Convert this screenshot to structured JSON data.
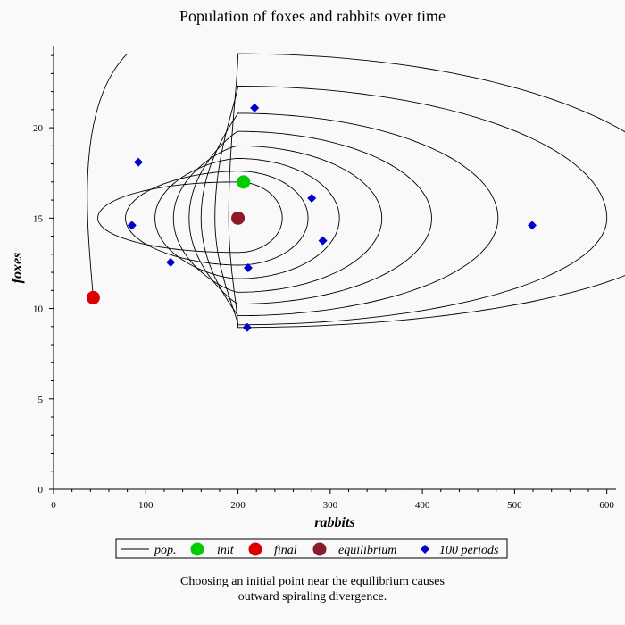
{
  "chart_data": {
    "type": "line",
    "title": "Population of foxes and rabbits over time",
    "xlabel": "rabbits",
    "ylabel": "foxes",
    "xlim": [
      0,
      610
    ],
    "ylim": [
      0,
      24.5
    ],
    "xticks": [
      0,
      100,
      200,
      300,
      400,
      500,
      600
    ],
    "yticks": [
      0,
      5,
      10,
      15,
      20
    ],
    "grid": false,
    "legend_position": "bottom",
    "equilibrium": [
      200,
      15
    ],
    "series": [
      {
        "name": "pop.",
        "kind": "curve",
        "color": "#000000",
        "description_points": "spiral trajectory from init outward around equilibrium"
      },
      {
        "name": "init",
        "kind": "marker",
        "color": "#00cc00",
        "points": [
          [
            206,
            17.0
          ]
        ]
      },
      {
        "name": "final",
        "kind": "marker",
        "color": "#dd0000",
        "points": [
          [
            43,
            10.6
          ]
        ]
      },
      {
        "name": "equilibrium",
        "kind": "marker",
        "color": "#8b1a2a",
        "points": [
          [
            200,
            15.0
          ]
        ]
      },
      {
        "name": "100 periods",
        "kind": "marker",
        "color": "#0000cc",
        "points": [
          [
            280,
            16.1
          ],
          [
            292,
            13.75
          ],
          [
            211,
            12.25
          ],
          [
            127,
            12.55
          ],
          [
            85,
            14.6
          ],
          [
            92,
            18.1
          ],
          [
            218,
            21.1
          ],
          [
            519,
            14.6
          ],
          [
            210,
            8.95
          ]
        ]
      }
    ],
    "legend": [
      "pop.",
      "init",
      "final",
      "equilibrium",
      "100 periods"
    ]
  },
  "caption": "Choosing an initial point near the equilibrium causes outward spiraling divergence."
}
